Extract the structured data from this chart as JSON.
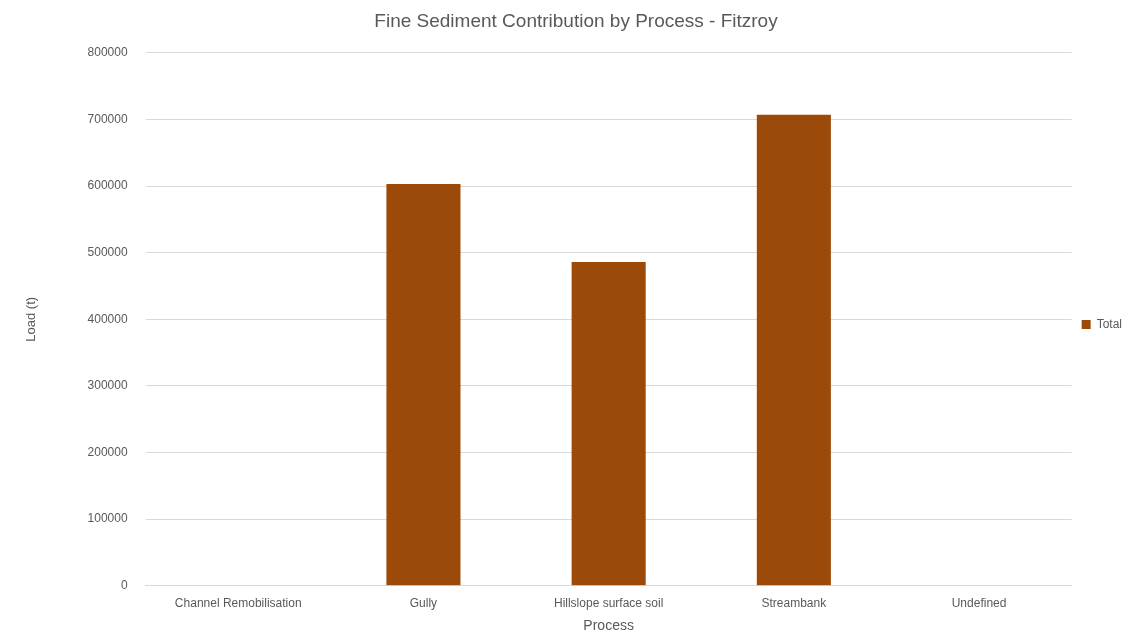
{
  "chart_data": {
    "type": "bar",
    "title": "Fine Sediment Contribution by Process - Fitzroy",
    "xlabel": "Process",
    "ylabel": "Load (t)",
    "categories": [
      "Channel Remobilisation",
      "Gully",
      "Hillslope surface soil",
      "Streambank",
      "Undefined"
    ],
    "series": [
      {
        "name": "Total",
        "color": "#9c4a0a",
        "values": [
          0,
          603000,
          486000,
          707000,
          0
        ]
      }
    ],
    "ylim": [
      0,
      800000
    ],
    "yticks": [
      0,
      100000,
      200000,
      300000,
      400000,
      500000,
      600000,
      700000,
      800000
    ],
    "grid": "y",
    "legend": "right"
  }
}
